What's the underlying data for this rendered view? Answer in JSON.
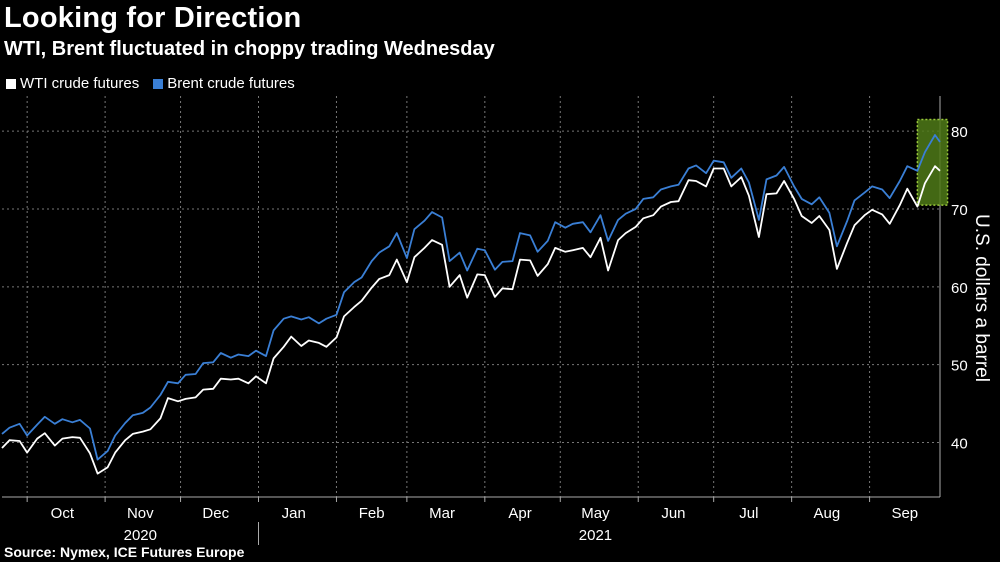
{
  "header": {
    "title": "Looking for Direction",
    "subtitle": "WTI, Brent fluctuated in choppy trading Wednesday"
  },
  "footer": {
    "source": "Source: Nymex, ICE Futures Europe"
  },
  "colors": {
    "wti": "#ffffff",
    "brent": "#3a7fd5",
    "highlight": "#4f7a17",
    "highlight_border": "#9ac93a",
    "grid": "#777777"
  },
  "chart_data": {
    "type": "line",
    "title": "Looking for Direction",
    "subtitle": "WTI, Brent fluctuated in choppy trading Wednesday",
    "ylabel": "U.S. dollars a barrel",
    "ylim": [
      33,
      84
    ],
    "yticks": [
      40,
      50,
      60,
      70,
      80
    ],
    "xlim": [
      "2020-09-21",
      "2021-09-29"
    ],
    "x_month_ticks": [
      {
        "label": "Oct",
        "date": "2020-10-15"
      },
      {
        "label": "Nov",
        "date": "2020-11-15"
      },
      {
        "label": "Dec",
        "date": "2020-12-15"
      },
      {
        "label": "Jan",
        "date": "2021-01-15"
      },
      {
        "label": "Feb",
        "date": "2021-02-15"
      },
      {
        "label": "Mar",
        "date": "2021-03-15"
      },
      {
        "label": "Apr",
        "date": "2021-04-15"
      },
      {
        "label": "May",
        "date": "2021-05-15"
      },
      {
        "label": "Jun",
        "date": "2021-06-15"
      },
      {
        "label": "Jul",
        "date": "2021-07-15"
      },
      {
        "label": "Aug",
        "date": "2021-08-15"
      },
      {
        "label": "Sep",
        "date": "2021-09-15"
      }
    ],
    "x_year_labels": [
      {
        "label": "2020",
        "date": "2020-11-15"
      },
      {
        "label": "2021",
        "date": "2021-05-15"
      }
    ],
    "year_divider_date": "2021-01-01",
    "highlight_range": {
      "start": "2021-09-20",
      "end": "2021-10-02",
      "ymin": 70.5,
      "ymax": 81.5
    },
    "legend_position": "top-left",
    "grid": true,
    "series": [
      {
        "name": "WTI crude futures",
        "x": [
          "2020-09-21",
          "2020-09-24",
          "2020-09-28",
          "2020-10-01",
          "2020-10-05",
          "2020-10-08",
          "2020-10-12",
          "2020-10-15",
          "2020-10-19",
          "2020-10-22",
          "2020-10-26",
          "2020-10-29",
          "2020-11-02",
          "2020-11-05",
          "2020-11-09",
          "2020-11-12",
          "2020-11-16",
          "2020-11-19",
          "2020-11-23",
          "2020-11-26",
          "2020-11-30",
          "2020-12-03",
          "2020-12-07",
          "2020-12-10",
          "2020-12-14",
          "2020-12-17",
          "2020-12-21",
          "2020-12-24",
          "2020-12-28",
          "2020-12-31",
          "2021-01-04",
          "2021-01-07",
          "2021-01-11",
          "2021-01-14",
          "2021-01-18",
          "2021-01-21",
          "2021-01-25",
          "2021-01-28",
          "2021-02-01",
          "2021-02-04",
          "2021-02-08",
          "2021-02-11",
          "2021-02-15",
          "2021-02-18",
          "2021-02-22",
          "2021-02-25",
          "2021-03-01",
          "2021-03-04",
          "2021-03-08",
          "2021-03-11",
          "2021-03-15",
          "2021-03-18",
          "2021-03-22",
          "2021-03-25",
          "2021-03-29",
          "2021-04-01",
          "2021-04-05",
          "2021-04-08",
          "2021-04-12",
          "2021-04-15",
          "2021-04-19",
          "2021-04-22",
          "2021-04-26",
          "2021-04-29",
          "2021-05-03",
          "2021-05-06",
          "2021-05-10",
          "2021-05-13",
          "2021-05-17",
          "2021-05-20",
          "2021-05-24",
          "2021-05-27",
          "2021-05-31",
          "2021-06-03",
          "2021-06-07",
          "2021-06-10",
          "2021-06-14",
          "2021-06-17",
          "2021-06-21",
          "2021-06-24",
          "2021-06-28",
          "2021-07-01",
          "2021-07-05",
          "2021-07-08",
          "2021-07-12",
          "2021-07-15",
          "2021-07-19",
          "2021-07-22",
          "2021-07-26",
          "2021-07-29",
          "2021-08-02",
          "2021-08-05",
          "2021-08-09",
          "2021-08-12",
          "2021-08-16",
          "2021-08-19",
          "2021-08-23",
          "2021-08-26",
          "2021-08-30",
          "2021-09-02",
          "2021-09-06",
          "2021-09-09",
          "2021-09-13",
          "2021-09-16",
          "2021-09-20",
          "2021-09-23",
          "2021-09-27",
          "2021-09-29"
        ],
        "values": [
          39.3,
          40.3,
          40.2,
          38.7,
          40.5,
          41.2,
          39.6,
          40.5,
          40.7,
          40.6,
          38.6,
          36.0,
          36.8,
          38.7,
          40.3,
          41.1,
          41.4,
          41.7,
          43.1,
          45.7,
          45.3,
          45.6,
          45.8,
          46.8,
          46.9,
          48.2,
          48.1,
          48.2,
          47.6,
          48.5,
          47.6,
          50.8,
          52.3,
          53.6,
          52.4,
          53.1,
          52.8,
          52.3,
          53.5,
          56.2,
          57.4,
          58.2,
          59.9,
          61.0,
          61.5,
          63.5,
          60.6,
          63.8,
          65.0,
          66.0,
          65.4,
          60.0,
          61.5,
          58.6,
          61.6,
          61.5,
          58.7,
          59.8,
          59.7,
          63.5,
          63.4,
          61.4,
          62.9,
          65.0,
          64.5,
          64.7,
          65.0,
          63.8,
          66.3,
          62.1,
          66.0,
          66.9,
          67.7,
          68.8,
          69.2,
          70.3,
          70.9,
          71.0,
          73.7,
          73.6,
          72.9,
          75.2,
          75.2,
          72.9,
          74.1,
          71.7,
          66.4,
          71.9,
          72.0,
          73.6,
          71.3,
          69.1,
          68.2,
          69.1,
          67.3,
          62.3,
          65.6,
          67.9,
          69.2,
          69.9,
          69.3,
          68.1,
          70.5,
          72.6,
          70.3,
          73.3,
          75.5,
          74.9
        ]
      },
      {
        "name": "Brent crude futures",
        "x": [
          "2020-09-21",
          "2020-09-24",
          "2020-09-28",
          "2020-10-01",
          "2020-10-05",
          "2020-10-08",
          "2020-10-12",
          "2020-10-15",
          "2020-10-19",
          "2020-10-22",
          "2020-10-26",
          "2020-10-29",
          "2020-11-02",
          "2020-11-05",
          "2020-11-09",
          "2020-11-12",
          "2020-11-16",
          "2020-11-19",
          "2020-11-23",
          "2020-11-26",
          "2020-11-30",
          "2020-12-03",
          "2020-12-07",
          "2020-12-10",
          "2020-12-14",
          "2020-12-17",
          "2020-12-21",
          "2020-12-24",
          "2020-12-28",
          "2020-12-31",
          "2021-01-04",
          "2021-01-07",
          "2021-01-11",
          "2021-01-14",
          "2021-01-18",
          "2021-01-21",
          "2021-01-25",
          "2021-01-28",
          "2021-02-01",
          "2021-02-04",
          "2021-02-08",
          "2021-02-11",
          "2021-02-15",
          "2021-02-18",
          "2021-02-22",
          "2021-02-25",
          "2021-03-01",
          "2021-03-04",
          "2021-03-08",
          "2021-03-11",
          "2021-03-15",
          "2021-03-18",
          "2021-03-22",
          "2021-03-25",
          "2021-03-29",
          "2021-04-01",
          "2021-04-05",
          "2021-04-08",
          "2021-04-12",
          "2021-04-15",
          "2021-04-19",
          "2021-04-22",
          "2021-04-26",
          "2021-04-29",
          "2021-05-03",
          "2021-05-06",
          "2021-05-10",
          "2021-05-13",
          "2021-05-17",
          "2021-05-20",
          "2021-05-24",
          "2021-05-27",
          "2021-05-31",
          "2021-06-03",
          "2021-06-07",
          "2021-06-10",
          "2021-06-14",
          "2021-06-17",
          "2021-06-21",
          "2021-06-24",
          "2021-06-28",
          "2021-07-01",
          "2021-07-05",
          "2021-07-08",
          "2021-07-12",
          "2021-07-15",
          "2021-07-19",
          "2021-07-22",
          "2021-07-26",
          "2021-07-29",
          "2021-08-02",
          "2021-08-05",
          "2021-08-09",
          "2021-08-12",
          "2021-08-16",
          "2021-08-19",
          "2021-08-23",
          "2021-08-26",
          "2021-08-30",
          "2021-09-02",
          "2021-09-06",
          "2021-09-09",
          "2021-09-13",
          "2021-09-16",
          "2021-09-20",
          "2021-09-23",
          "2021-09-27",
          "2021-09-29"
        ],
        "values": [
          41.1,
          41.9,
          42.4,
          40.9,
          42.3,
          43.3,
          42.4,
          43.0,
          42.6,
          42.9,
          41.8,
          37.8,
          38.9,
          40.9,
          42.5,
          43.5,
          43.8,
          44.5,
          46.1,
          47.8,
          47.6,
          48.7,
          48.8,
          50.2,
          50.3,
          51.5,
          50.9,
          51.3,
          51.1,
          51.8,
          51.1,
          54.4,
          55.9,
          56.2,
          55.8,
          56.1,
          55.3,
          55.9,
          56.4,
          59.3,
          60.6,
          61.2,
          63.3,
          64.4,
          65.2,
          66.9,
          63.7,
          67.4,
          68.5,
          69.6,
          68.9,
          63.3,
          64.4,
          62.1,
          64.9,
          64.7,
          62.2,
          63.2,
          63.3,
          66.9,
          66.6,
          64.5,
          65.9,
          68.3,
          67.6,
          68.1,
          68.3,
          67.0,
          69.2,
          65.9,
          68.6,
          69.4,
          70.0,
          71.3,
          71.5,
          72.5,
          72.9,
          73.1,
          75.2,
          75.6,
          74.6,
          76.2,
          76.0,
          74.0,
          75.2,
          73.4,
          68.6,
          73.8,
          74.3,
          75.4,
          72.9,
          71.3,
          70.6,
          71.5,
          69.5,
          65.2,
          68.4,
          71.1,
          72.1,
          72.9,
          72.5,
          71.4,
          73.6,
          75.5,
          74.9,
          77.3,
          79.5,
          78.6
        ]
      }
    ]
  }
}
